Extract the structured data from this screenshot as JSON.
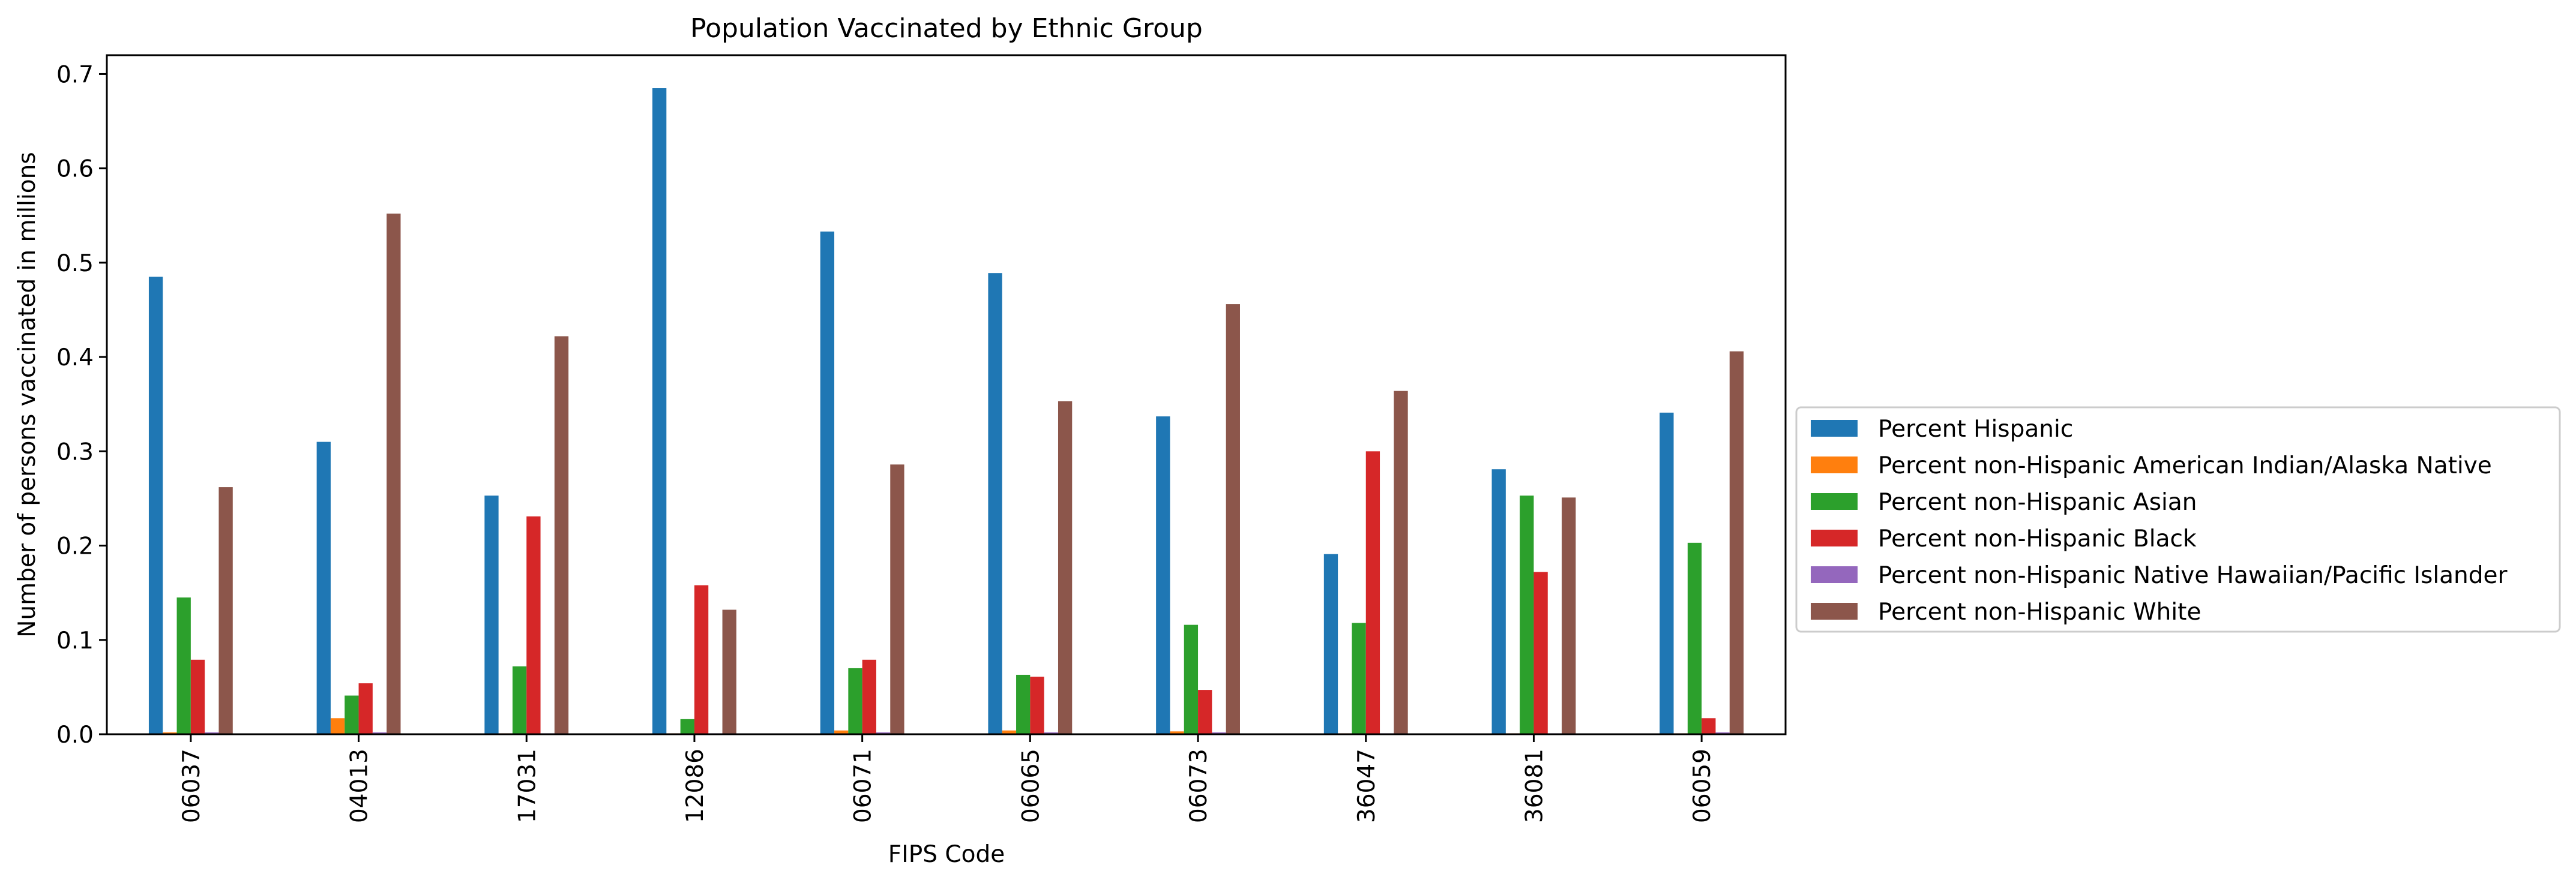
{
  "chart_data": {
    "type": "bar",
    "title": "Population Vaccinated by Ethnic Group",
    "xlabel": "FIPS Code",
    "ylabel": "Number of persons vaccinated in millions",
    "ylim": [
      0,
      0.72
    ],
    "yticks": [
      0.0,
      0.1,
      0.2,
      0.3,
      0.4,
      0.5,
      0.6,
      0.7
    ],
    "ytick_labels": [
      "0.0",
      "0.1",
      "0.2",
      "0.3",
      "0.4",
      "0.5",
      "0.6",
      "0.7"
    ],
    "grid": false,
    "legend_position": "right, outside plot",
    "categories": [
      "06037",
      "04013",
      "17031",
      "12086",
      "06071",
      "06065",
      "06073",
      "36047",
      "36081",
      "06059"
    ],
    "series": [
      {
        "name": "Percent Hispanic",
        "color": "#1f77b4",
        "values": [
          0.485,
          0.31,
          0.253,
          0.685,
          0.533,
          0.489,
          0.337,
          0.191,
          0.281,
          0.341
        ]
      },
      {
        "name": "Percent non-Hispanic American Indian/Alaska Native",
        "color": "#ff7f0e",
        "values": [
          0.002,
          0.017,
          0.001,
          0.001,
          0.004,
          0.004,
          0.003,
          0.001,
          0.001,
          0.001
        ]
      },
      {
        "name": "Percent non-Hispanic Asian",
        "color": "#2ca02c",
        "values": [
          0.145,
          0.041,
          0.072,
          0.016,
          0.07,
          0.063,
          0.116,
          0.118,
          0.253,
          0.203
        ]
      },
      {
        "name": "Percent non-Hispanic Black",
        "color": "#d62728",
        "values": [
          0.079,
          0.054,
          0.231,
          0.158,
          0.079,
          0.061,
          0.047,
          0.3,
          0.172,
          0.017
        ]
      },
      {
        "name": "Percent non-Hispanic Native Hawaiian/Pacific Islander",
        "color": "#9467bd",
        "values": [
          0.002,
          0.002,
          0.001,
          0.001,
          0.002,
          0.002,
          0.002,
          0.001,
          0.001,
          0.002
        ]
      },
      {
        "name": "Percent non-Hispanic White",
        "color": "#8c564b",
        "values": [
          0.262,
          0.552,
          0.422,
          0.132,
          0.286,
          0.353,
          0.456,
          0.364,
          0.251,
          0.406
        ]
      }
    ]
  }
}
